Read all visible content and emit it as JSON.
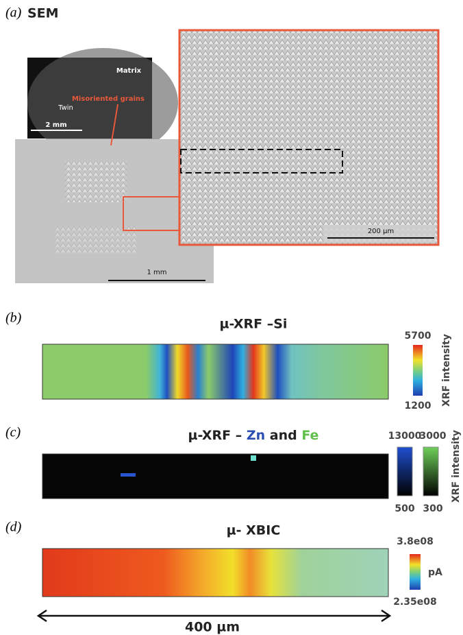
{
  "panel_a": {
    "label": "(a)",
    "title": "SEM",
    "matrix": "Matrix",
    "twin": "Twin",
    "misoriented": "Misoriented grains",
    "inset_scale": "2 mm",
    "overview_scale": "1 mm",
    "zoom_scale": "200 µm"
  },
  "panel_b": {
    "label": "(b)",
    "title": "µ-XRF –Si",
    "colorbar_max": "5700",
    "colorbar_min": "1200",
    "colorbar_label": "XRF intensity"
  },
  "panel_c": {
    "label": "(c)",
    "title": [
      "µ-XRF – ",
      "Zn",
      " and ",
      "Fe"
    ],
    "zn_max": "13000",
    "fe_max": "3000",
    "zn_min": "500",
    "fe_min": "300",
    "colorbar_label": "XRF intensity"
  },
  "panel_d": {
    "label": "(d)",
    "title": "µ- XBIC",
    "colorbar_max": "3.8e08",
    "colorbar_min": "2.35e08",
    "colorbar_label": "pA"
  },
  "scale_bar": "400 µm"
}
